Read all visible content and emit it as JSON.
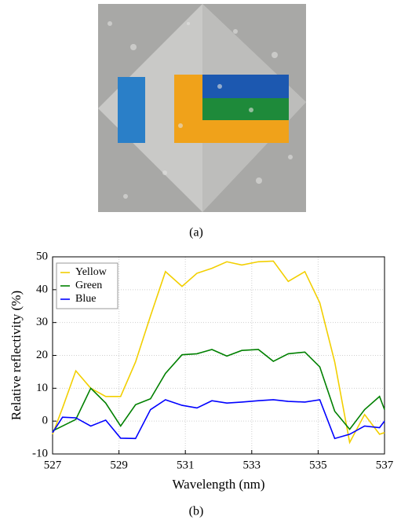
{
  "caption_a": "(a)",
  "caption_b": "(b)",
  "chart_data": {
    "type": "line",
    "xlabel": "Wavelength (nm)",
    "ylabel": "Relative reflectivity (%)",
    "x": [
      527,
      527.3,
      527.7,
      528.15,
      528.6,
      529.05,
      529.5,
      529.95,
      530.4,
      530.9,
      531.35,
      531.8,
      532.25,
      532.7,
      533.2,
      533.65,
      534.1,
      534.6,
      535.05,
      535.5,
      535.95,
      536.4,
      536.85,
      537
    ],
    "series": [
      {
        "name": "Yellow",
        "color": "#f2cf00",
        "values": [
          -4,
          4,
          15.3,
          10,
          7.5,
          7.5,
          18,
          32,
          45.5,
          41,
          45,
          46.5,
          48.5,
          47.5,
          48.5,
          48.7,
          42.5,
          45.5,
          36,
          18,
          -6.5,
          2,
          -4,
          -3.5
        ]
      },
      {
        "name": "Green",
        "color": "#008000",
        "values": [
          -3,
          -1.5,
          0.5,
          10,
          5.5,
          -1.5,
          5,
          6.8,
          14.5,
          20.2,
          20.5,
          21.8,
          19.8,
          21.5,
          21.8,
          18.2,
          20.5,
          21,
          16.5,
          3,
          -2.5,
          3.5,
          7.5,
          3.5
        ]
      },
      {
        "name": "Blue",
        "color": "#0000ff",
        "values": [
          -3.5,
          1.2,
          1,
          -1.5,
          0.3,
          -5.2,
          -5.3,
          3.5,
          6.5,
          4.8,
          4,
          6.2,
          5.5,
          5.8,
          6.2,
          6.5,
          6,
          5.8,
          6.5,
          -5.3,
          -4,
          -1.5,
          -2,
          0
        ]
      }
    ],
    "xlim": [
      527,
      537
    ],
    "xticks": [
      527,
      529,
      531,
      533,
      535,
      537
    ],
    "ylim": [
      -10,
      50
    ],
    "yticks": [
      -10,
      0,
      10,
      20,
      30,
      40,
      50
    ],
    "grid": true,
    "legend": "upper left"
  }
}
